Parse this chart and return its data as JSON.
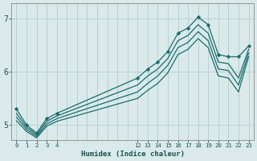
{
  "xlabel": "Humidex (Indice chaleur)",
  "ylabel": "",
  "bg_color": "#daeaea",
  "grid_color": "#b8d0d0",
  "line_color": "#1a6b6b",
  "xlim": [
    -0.5,
    23.5
  ],
  "ylim": [
    4.72,
    7.28
  ],
  "xticks": [
    0,
    1,
    2,
    3,
    4,
    12,
    13,
    14,
    15,
    16,
    17,
    18,
    19,
    20,
    21,
    22,
    23
  ],
  "yticks": [
    5,
    6,
    7
  ],
  "hours": [
    0,
    1,
    2,
    3,
    4,
    12,
    13,
    14,
    15,
    16,
    17,
    18,
    19,
    20,
    21,
    22,
    23
  ],
  "line1": [
    5.3,
    5.0,
    4.85,
    5.12,
    5.22,
    5.88,
    6.05,
    6.18,
    6.38,
    6.72,
    6.82,
    7.02,
    6.88,
    6.32,
    6.28,
    6.28,
    6.48
  ],
  "line2": [
    5.22,
    4.96,
    4.82,
    5.07,
    5.17,
    5.75,
    5.92,
    6.05,
    6.25,
    6.58,
    6.68,
    6.88,
    6.72,
    6.18,
    6.15,
    5.88,
    6.42
  ],
  "line3": [
    5.15,
    4.92,
    4.79,
    5.02,
    5.12,
    5.62,
    5.78,
    5.92,
    6.12,
    6.45,
    6.55,
    6.75,
    6.58,
    6.05,
    6.02,
    5.75,
    6.35
  ],
  "line4": [
    5.08,
    4.88,
    4.76,
    4.98,
    5.07,
    5.5,
    5.65,
    5.78,
    5.98,
    6.32,
    6.42,
    6.62,
    6.45,
    5.92,
    5.88,
    5.62,
    6.28
  ]
}
